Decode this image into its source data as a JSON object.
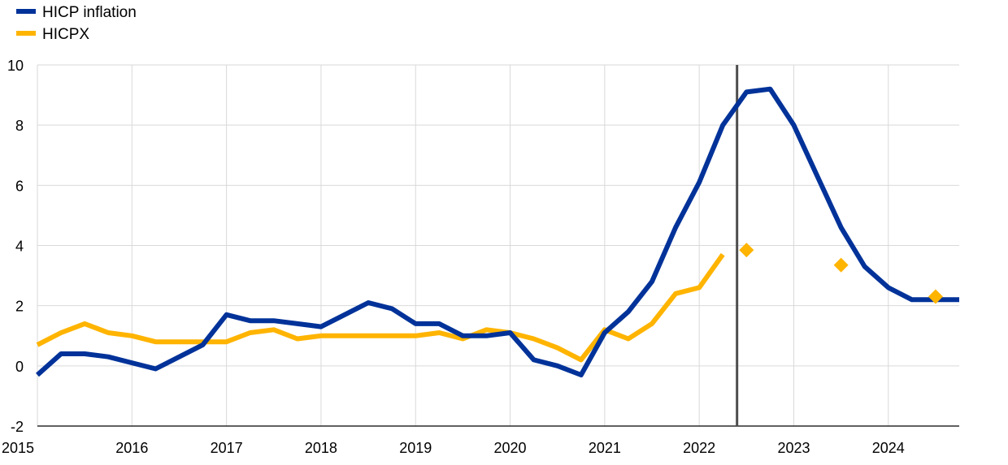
{
  "colors": {
    "hicp": "#003299",
    "hicpx": "#FFB400",
    "grid": "#d9d9d9",
    "marker_line": "#4d4d4d"
  },
  "legend": {
    "items": [
      {
        "name": "HICP inflation",
        "color": "#003299"
      },
      {
        "name": "HICPX",
        "color": "#FFB400"
      }
    ],
    "position": "top-left"
  },
  "chart_data": {
    "type": "line",
    "title": "",
    "xlabel": "",
    "ylabel": "",
    "xlim": [
      2015.0,
      2024.75
    ],
    "ylim": [
      -2,
      10
    ],
    "grid": true,
    "x_ticks": [
      "2015",
      "2016",
      "2017",
      "2018",
      "2019",
      "2020",
      "2021",
      "2022",
      "2023",
      "2024"
    ],
    "y_ticks": [
      "-2",
      "0",
      "2",
      "4",
      "6",
      "8",
      "10"
    ],
    "vertical_line_x": 2022.4,
    "series": [
      {
        "name": "HICP inflation",
        "x": [
          2015.0,
          2015.25,
          2015.5,
          2015.75,
          2016.0,
          2016.25,
          2016.5,
          2016.75,
          2017.0,
          2017.25,
          2017.5,
          2017.75,
          2018.0,
          2018.25,
          2018.5,
          2018.75,
          2019.0,
          2019.25,
          2019.5,
          2019.75,
          2020.0,
          2020.25,
          2020.5,
          2020.75,
          2021.0,
          2021.25,
          2021.5,
          2021.75,
          2022.0,
          2022.25,
          2022.5,
          2022.75,
          2023.0,
          2023.25,
          2023.5,
          2023.75,
          2024.0,
          2024.25,
          2024.5,
          2024.75
        ],
        "values": [
          -0.3,
          0.4,
          0.4,
          0.3,
          0.1,
          -0.1,
          0.3,
          0.7,
          1.7,
          1.5,
          1.5,
          1.4,
          1.3,
          1.7,
          2.1,
          1.9,
          1.4,
          1.4,
          1.0,
          1.0,
          1.1,
          0.2,
          0.0,
          -0.3,
          1.1,
          1.8,
          2.8,
          4.6,
          6.1,
          8.0,
          9.1,
          9.2,
          8.0,
          6.3,
          4.6,
          3.3,
          2.6,
          2.2,
          2.2,
          2.2
        ]
      },
      {
        "name": "HICPX",
        "x": [
          2015.0,
          2015.25,
          2015.5,
          2015.75,
          2016.0,
          2016.25,
          2016.5,
          2016.75,
          2017.0,
          2017.25,
          2017.5,
          2017.75,
          2018.0,
          2018.25,
          2018.5,
          2018.75,
          2019.0,
          2019.25,
          2019.5,
          2019.75,
          2020.0,
          2020.25,
          2020.5,
          2020.75,
          2021.0,
          2021.25,
          2021.5,
          2021.75,
          2022.0,
          2022.25
        ],
        "values": [
          0.7,
          1.1,
          1.4,
          1.1,
          1.0,
          0.8,
          0.8,
          0.8,
          0.8,
          1.1,
          1.2,
          0.9,
          1.0,
          1.0,
          1.0,
          1.0,
          1.0,
          1.1,
          0.9,
          1.2,
          1.1,
          0.9,
          0.6,
          0.2,
          1.2,
          0.9,
          1.4,
          2.4,
          2.6,
          3.7
        ]
      },
      {
        "name": "",
        "style": "diamond-markers",
        "x": [
          2022.5,
          2023.5,
          2024.5
        ],
        "values": [
          3.85,
          3.35,
          2.3
        ]
      }
    ]
  }
}
